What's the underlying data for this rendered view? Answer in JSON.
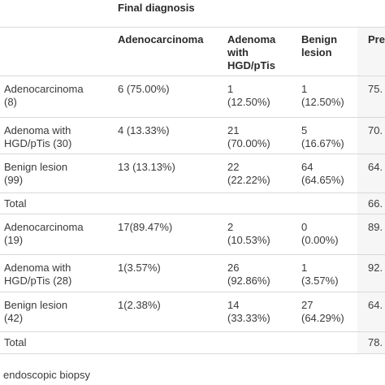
{
  "header": {
    "group_title": "Final diagnosis",
    "columns": [
      [
        "Adenocarcinoma"
      ],
      [
        "Adenoma",
        "with",
        "HGD/pTis"
      ],
      [
        "Benign",
        "lesion"
      ],
      [
        "Pre"
      ]
    ]
  },
  "rows": [
    {
      "label": [
        "Adenocarcinoma",
        "(8)"
      ],
      "c1": [
        "6 (75.00%)"
      ],
      "c2": [
        "1",
        "(12.50%)"
      ],
      "c3": [
        "1",
        "(12.50%)"
      ],
      "c4": [
        "75."
      ]
    },
    {
      "label": [
        "Adenoma with",
        "HGD/pTis (30)"
      ],
      "c1": [
        "4 (13.33%)"
      ],
      "c2": [
        "21",
        "(70.00%)"
      ],
      "c3": [
        "5",
        "(16.67%)"
      ],
      "c4": [
        "70."
      ]
    },
    {
      "label": [
        "Benign lesion",
        "(99)"
      ],
      "c1": [
        "13 (13.13%)"
      ],
      "c2": [
        "22",
        "(22.22%)"
      ],
      "c3": [
        "64",
        "(64.65%)"
      ],
      "c4": [
        "64."
      ]
    },
    {
      "label": [
        "Total"
      ],
      "c1": [
        ""
      ],
      "c2": [
        ""
      ],
      "c3": [
        ""
      ],
      "c4": [
        "66."
      ]
    },
    {
      "label": [
        "Adenocarcinoma",
        "(19)"
      ],
      "c1": [
        "17(89.47%)"
      ],
      "c2": [
        "2",
        "(10.53%)"
      ],
      "c3": [
        "0",
        "(0.00%)"
      ],
      "c4": [
        "89."
      ]
    },
    {
      "label": [
        "Adenoma with",
        "HGD/pTis (28)"
      ],
      "c1": [
        "1(3.57%)"
      ],
      "c2": [
        "26",
        "(92.86%)"
      ],
      "c3": [
        "1",
        "(3.57%)"
      ],
      "c4": [
        "92."
      ]
    },
    {
      "label": [
        "Benign lesion",
        "(42)"
      ],
      "c1": [
        "1(2.38%)"
      ],
      "c2": [
        "14",
        "(33.33%)"
      ],
      "c3": [
        "27",
        "(64.29%)"
      ],
      "c4": [
        "64."
      ]
    },
    {
      "label": [
        "Total"
      ],
      "c1": [
        ""
      ],
      "c2": [
        ""
      ],
      "c3": [
        ""
      ],
      "c4": [
        "78."
      ]
    }
  ],
  "footer": {
    "caption": "endoscopic biopsy"
  }
}
